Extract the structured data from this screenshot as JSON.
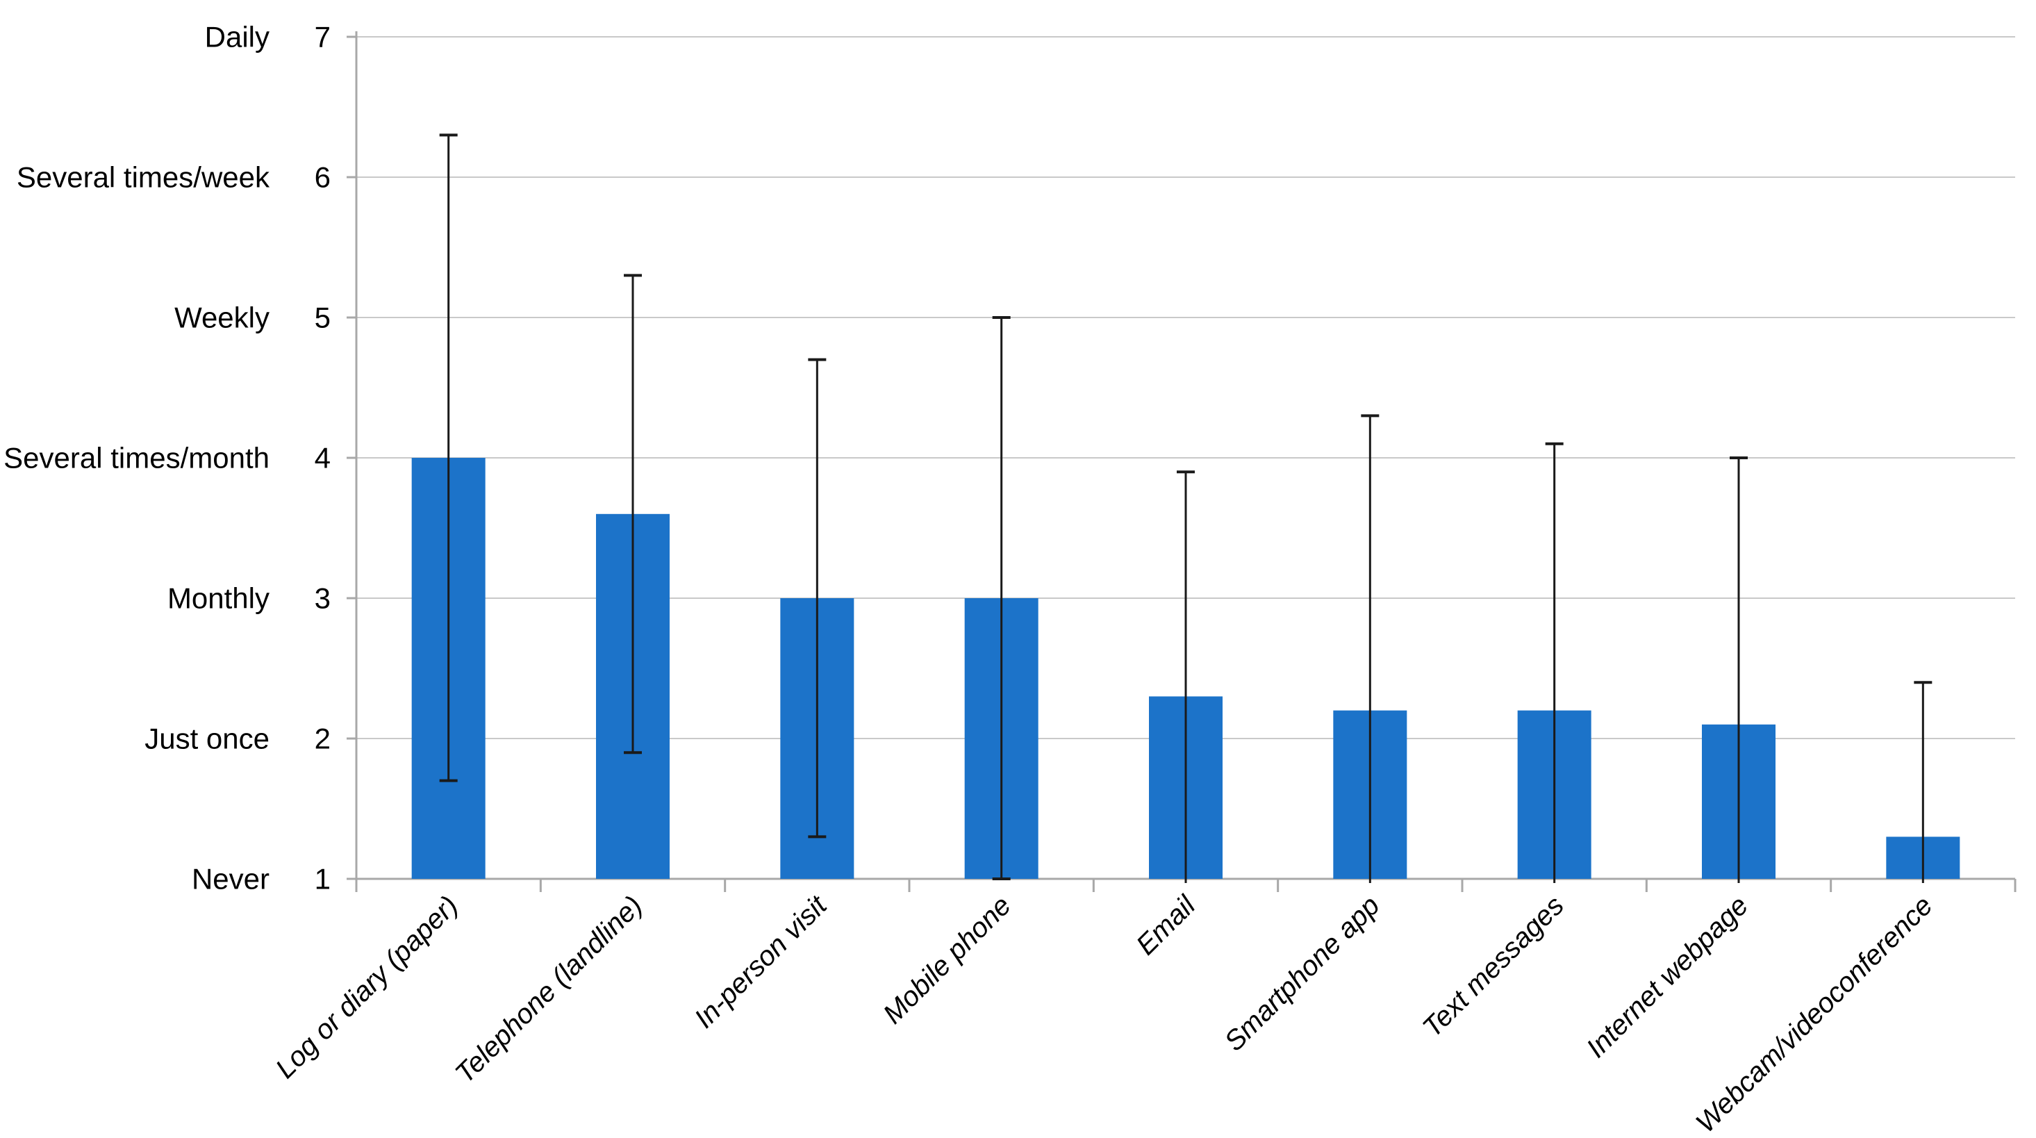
{
  "chart_data": {
    "type": "bar",
    "title": "",
    "categories": [
      "Log or diary (paper)",
      "Telephone (landline)",
      "In-person visit",
      "Mobile phone",
      "Email",
      "Smartphone app",
      "Text messages",
      "Internet webpage",
      "Webcam/videoconference"
    ],
    "values": [
      4.0,
      3.6,
      3.0,
      3.0,
      2.3,
      2.2,
      2.2,
      2.1,
      1.3
    ],
    "error_high": [
      6.3,
      5.3,
      4.7,
      5.0,
      3.9,
      4.3,
      4.1,
      4.0,
      2.4
    ],
    "error_low": [
      1.7,
      1.9,
      1.3,
      1.0,
      1.0,
      1.0,
      1.0,
      1.0,
      1.0
    ],
    "error_low_capped": [
      true,
      true,
      true,
      true,
      false,
      false,
      false,
      false,
      false
    ],
    "xlabel": "",
    "ylabel": "",
    "ylim": [
      1,
      7
    ],
    "grid": true,
    "legend_position": "none",
    "y_axis": {
      "tick_values": [
        1,
        2,
        3,
        4,
        5,
        6,
        7
      ],
      "tick_labels": [
        "1",
        "2",
        "3",
        "4",
        "5",
        "6",
        "7"
      ],
      "scale_labels": [
        {
          "value": 7,
          "label": "Daily"
        },
        {
          "value": 6,
          "label": "Several times/week"
        },
        {
          "value": 5,
          "label": "Weekly"
        },
        {
          "value": 4,
          "label": "Several times/month"
        },
        {
          "value": 3,
          "label": "Monthly"
        },
        {
          "value": 2,
          "label": "Just once"
        },
        {
          "value": 1,
          "label": "Never"
        }
      ]
    },
    "colors": {
      "bar_fill": "#1C73C9",
      "error_bar": "#1A1A1A",
      "gridline": "#C9C9C9",
      "axis_line": "#A8A8A8",
      "text": "#000000",
      "background": "#FFFFFF"
    }
  }
}
